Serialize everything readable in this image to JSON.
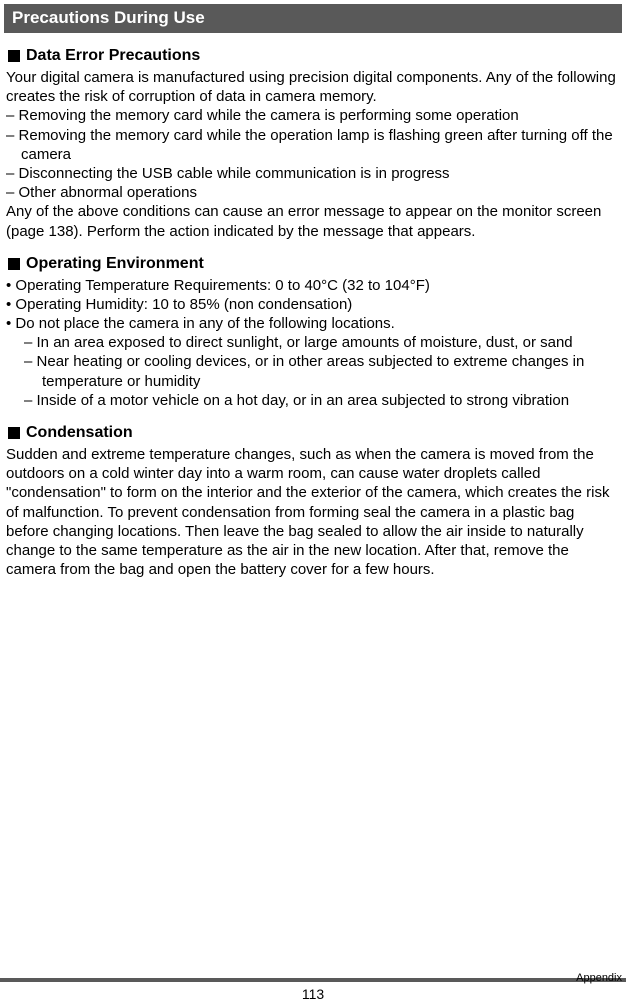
{
  "section_title": "Precautions During Use",
  "subsections": {
    "data_error": {
      "heading": "Data Error Precautions",
      "intro": "Your digital camera is manufactured using precision digital components. Any of the following creates the risk of corruption of data in camera memory.",
      "items": [
        "Removing the memory card while the camera is performing some operation",
        "Removing the memory card while the operation lamp is flashing green after turning off the camera",
        "Disconnecting the USB cable while communication is in progress",
        "Other abnormal operations"
      ],
      "outro": "Any of the above conditions can cause an error message to appear on the monitor screen (page 138). Perform the action indicated by the message that appears."
    },
    "operating_env": {
      "heading": "Operating Environment",
      "bullets": [
        "Operating Temperature Requirements: 0 to 40°C (32 to 104°F)",
        "Operating Humidity: 10 to 85% (non condensation)",
        "Do not place the camera in any of the following locations."
      ],
      "sub_items": [
        "In an area exposed to direct sunlight, or large amounts of moisture, dust, or sand",
        "Near heating or cooling devices, or in other areas subjected to extreme changes in temperature or humidity",
        "Inside of a motor vehicle on a hot day, or in an area subjected to strong vibration"
      ]
    },
    "condensation": {
      "heading": "Condensation",
      "text": "Sudden and extreme temperature changes, such as when the camera is moved from the outdoors on a cold winter day into a warm room, can cause water droplets called \"condensation\" to form on the interior and the exterior of the camera, which creates the risk of malfunction. To prevent condensation from forming seal the camera in a plastic bag before changing locations. Then leave the bag sealed to allow the air inside to naturally change to the same temperature as the air in the new location. After that, remove the camera from the bag and open the battery cover for a few hours."
    }
  },
  "footer": {
    "page_number": "113",
    "appendix_label": "Appendix"
  }
}
